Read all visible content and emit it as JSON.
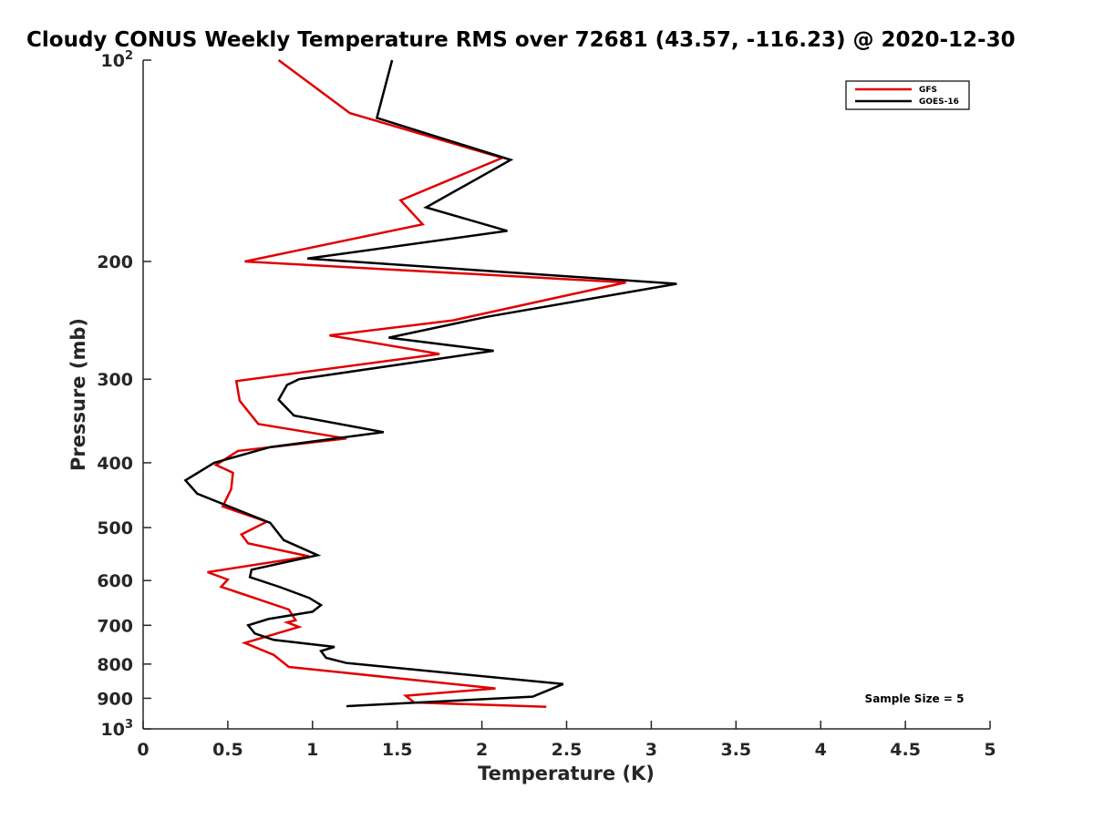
{
  "chart_data": {
    "type": "line",
    "title": "Cloudy CONUS Weekly Temperature RMS over 72681 (43.57, -116.23) @ 2020-12-30",
    "xlabel": "Temperature (K)",
    "ylabel": "Pressure (mb)",
    "xlim": [
      0,
      5
    ],
    "ylim": [
      100,
      1000
    ],
    "y_scale": "log",
    "y_reversed": true,
    "grid": false,
    "legend_position": "top-right",
    "x_ticks": [
      {
        "value": 0,
        "label": "0"
      },
      {
        "value": 0.5,
        "label": "0.5"
      },
      {
        "value": 1,
        "label": "1"
      },
      {
        "value": 1.5,
        "label": "1.5"
      },
      {
        "value": 2,
        "label": "2"
      },
      {
        "value": 2.5,
        "label": "2.5"
      },
      {
        "value": 3,
        "label": "3"
      },
      {
        "value": 3.5,
        "label": "3.5"
      },
      {
        "value": 4,
        "label": "4"
      },
      {
        "value": 4.5,
        "label": "4.5"
      },
      {
        "value": 5,
        "label": "5"
      }
    ],
    "y_ticks": [
      {
        "value": 100,
        "label": "10",
        "sup": "2"
      },
      {
        "value": 200,
        "label": "200"
      },
      {
        "value": 300,
        "label": "300"
      },
      {
        "value": 400,
        "label": "400"
      },
      {
        "value": 500,
        "label": "500"
      },
      {
        "value": 600,
        "label": "600"
      },
      {
        "value": 700,
        "label": "700"
      },
      {
        "value": 800,
        "label": "800"
      },
      {
        "value": 900,
        "label": "900"
      },
      {
        "value": 1000,
        "label": "10",
        "sup": "3"
      }
    ],
    "annotations": [
      "Sample Size = 5"
    ],
    "series": [
      {
        "name": "GFS",
        "color": "#e00000",
        "points": [
          {
            "x": 0.8,
            "y": 100
          },
          {
            "x": 1.22,
            "y": 120
          },
          {
            "x": 2.12,
            "y": 140
          },
          {
            "x": 1.52,
            "y": 162
          },
          {
            "x": 1.65,
            "y": 176
          },
          {
            "x": 0.6,
            "y": 200
          },
          {
            "x": 2.85,
            "y": 215
          },
          {
            "x": 1.83,
            "y": 245
          },
          {
            "x": 1.1,
            "y": 258
          },
          {
            "x": 1.75,
            "y": 275
          },
          {
            "x": 0.55,
            "y": 302
          },
          {
            "x": 0.57,
            "y": 323
          },
          {
            "x": 0.68,
            "y": 350
          },
          {
            "x": 1.2,
            "y": 368
          },
          {
            "x": 0.56,
            "y": 384
          },
          {
            "x": 0.43,
            "y": 403
          },
          {
            "x": 0.53,
            "y": 414
          },
          {
            "x": 0.52,
            "y": 438
          },
          {
            "x": 0.47,
            "y": 465
          },
          {
            "x": 0.73,
            "y": 490
          },
          {
            "x": 0.58,
            "y": 512
          },
          {
            "x": 0.62,
            "y": 528
          },
          {
            "x": 0.98,
            "y": 552
          },
          {
            "x": 0.38,
            "y": 583
          },
          {
            "x": 0.5,
            "y": 598
          },
          {
            "x": 0.46,
            "y": 613
          },
          {
            "x": 0.86,
            "y": 663
          },
          {
            "x": 0.9,
            "y": 688
          },
          {
            "x": 0.85,
            "y": 693
          },
          {
            "x": 0.92,
            "y": 704
          },
          {
            "x": 0.6,
            "y": 744
          },
          {
            "x": 0.77,
            "y": 775
          },
          {
            "x": 0.86,
            "y": 808
          },
          {
            "x": 2.08,
            "y": 870
          },
          {
            "x": 1.55,
            "y": 892
          },
          {
            "x": 1.6,
            "y": 913
          },
          {
            "x": 2.38,
            "y": 927
          }
        ]
      },
      {
        "name": "GOES-16",
        "color": "#000000",
        "points": [
          {
            "x": 1.47,
            "y": 100
          },
          {
            "x": 1.38,
            "y": 122
          },
          {
            "x": 2.17,
            "y": 141
          },
          {
            "x": 1.67,
            "y": 166
          },
          {
            "x": 2.15,
            "y": 180
          },
          {
            "x": 0.97,
            "y": 198
          },
          {
            "x": 3.15,
            "y": 216
          },
          {
            "x": 2.03,
            "y": 242
          },
          {
            "x": 1.45,
            "y": 260
          },
          {
            "x": 2.07,
            "y": 272
          },
          {
            "x": 0.92,
            "y": 300
          },
          {
            "x": 0.85,
            "y": 306
          },
          {
            "x": 0.8,
            "y": 322
          },
          {
            "x": 0.89,
            "y": 340
          },
          {
            "x": 1.42,
            "y": 360
          },
          {
            "x": 0.75,
            "y": 379
          },
          {
            "x": 0.42,
            "y": 400
          },
          {
            "x": 0.25,
            "y": 425
          },
          {
            "x": 0.32,
            "y": 445
          },
          {
            "x": 0.75,
            "y": 492
          },
          {
            "x": 0.83,
            "y": 522
          },
          {
            "x": 1.03,
            "y": 550
          },
          {
            "x": 0.64,
            "y": 578
          },
          {
            "x": 0.63,
            "y": 593
          },
          {
            "x": 0.81,
            "y": 614
          },
          {
            "x": 0.98,
            "y": 637
          },
          {
            "x": 1.05,
            "y": 653
          },
          {
            "x": 1.0,
            "y": 668
          },
          {
            "x": 0.74,
            "y": 685
          },
          {
            "x": 0.62,
            "y": 700
          },
          {
            "x": 0.66,
            "y": 720
          },
          {
            "x": 0.77,
            "y": 736
          },
          {
            "x": 1.13,
            "y": 754
          },
          {
            "x": 1.05,
            "y": 765
          },
          {
            "x": 1.08,
            "y": 783
          },
          {
            "x": 1.2,
            "y": 797
          },
          {
            "x": 2.48,
            "y": 857
          },
          {
            "x": 2.3,
            "y": 895
          },
          {
            "x": 1.2,
            "y": 925
          }
        ]
      }
    ]
  }
}
